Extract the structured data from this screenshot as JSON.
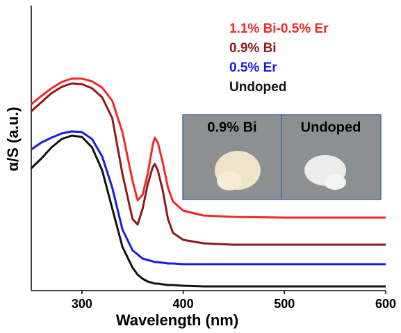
{
  "chart_data": {
    "type": "line",
    "xlabel": "Wavelength (nm)",
    "ylabel": "α/S (a.u.)",
    "x": [
      250,
      260,
      270,
      280,
      290,
      300,
      310,
      320,
      330,
      340,
      350,
      355,
      360,
      365,
      370,
      372,
      375,
      380,
      385,
      390,
      400,
      420,
      450,
      500,
      550,
      600
    ],
    "series": [
      {
        "name": "1.1% Bi-0.5% Er",
        "color": "#f02828",
        "values": [
          268,
          280,
          291,
          300,
          305,
          305,
          301,
          292,
          273,
          228,
          158,
          130,
          138,
          168,
          210,
          220,
          213,
          183,
          148,
          128,
          115,
          108,
          106,
          105,
          105,
          105
        ]
      },
      {
        "name": "0.9% Bi",
        "color": "#8b1a1a",
        "values": [
          258,
          271,
          284,
          293,
          298,
          297,
          291,
          278,
          248,
          168,
          103,
          95,
          118,
          153,
          178,
          182,
          173,
          143,
          103,
          83,
          73,
          68,
          66,
          66,
          66,
          66
        ]
      },
      {
        "name": "0.5% Er",
        "color": "#1a1ae6",
        "values": [
          203,
          213,
          220,
          226,
          229,
          228,
          218,
          193,
          148,
          88,
          58,
          52,
          46,
          44,
          42,
          41,
          41,
          40,
          39,
          39,
          38,
          38,
          38,
          38,
          38,
          38
        ]
      },
      {
        "name": "Undoped",
        "color": "#111111",
        "values": [
          176,
          190,
          206,
          218,
          223,
          221,
          206,
          173,
          118,
          63,
          33,
          23,
          17,
          13,
          11,
          10,
          10,
          9,
          8,
          8,
          7,
          6,
          6,
          6,
          6,
          6
        ]
      }
    ],
    "xlim": [
      250,
      600
    ],
    "xticks": [
      300,
      400,
      500,
      600
    ],
    "ylim": [
      0,
      410
    ],
    "annotations": [
      "0.9% Bi",
      "Undoped"
    ]
  }
}
